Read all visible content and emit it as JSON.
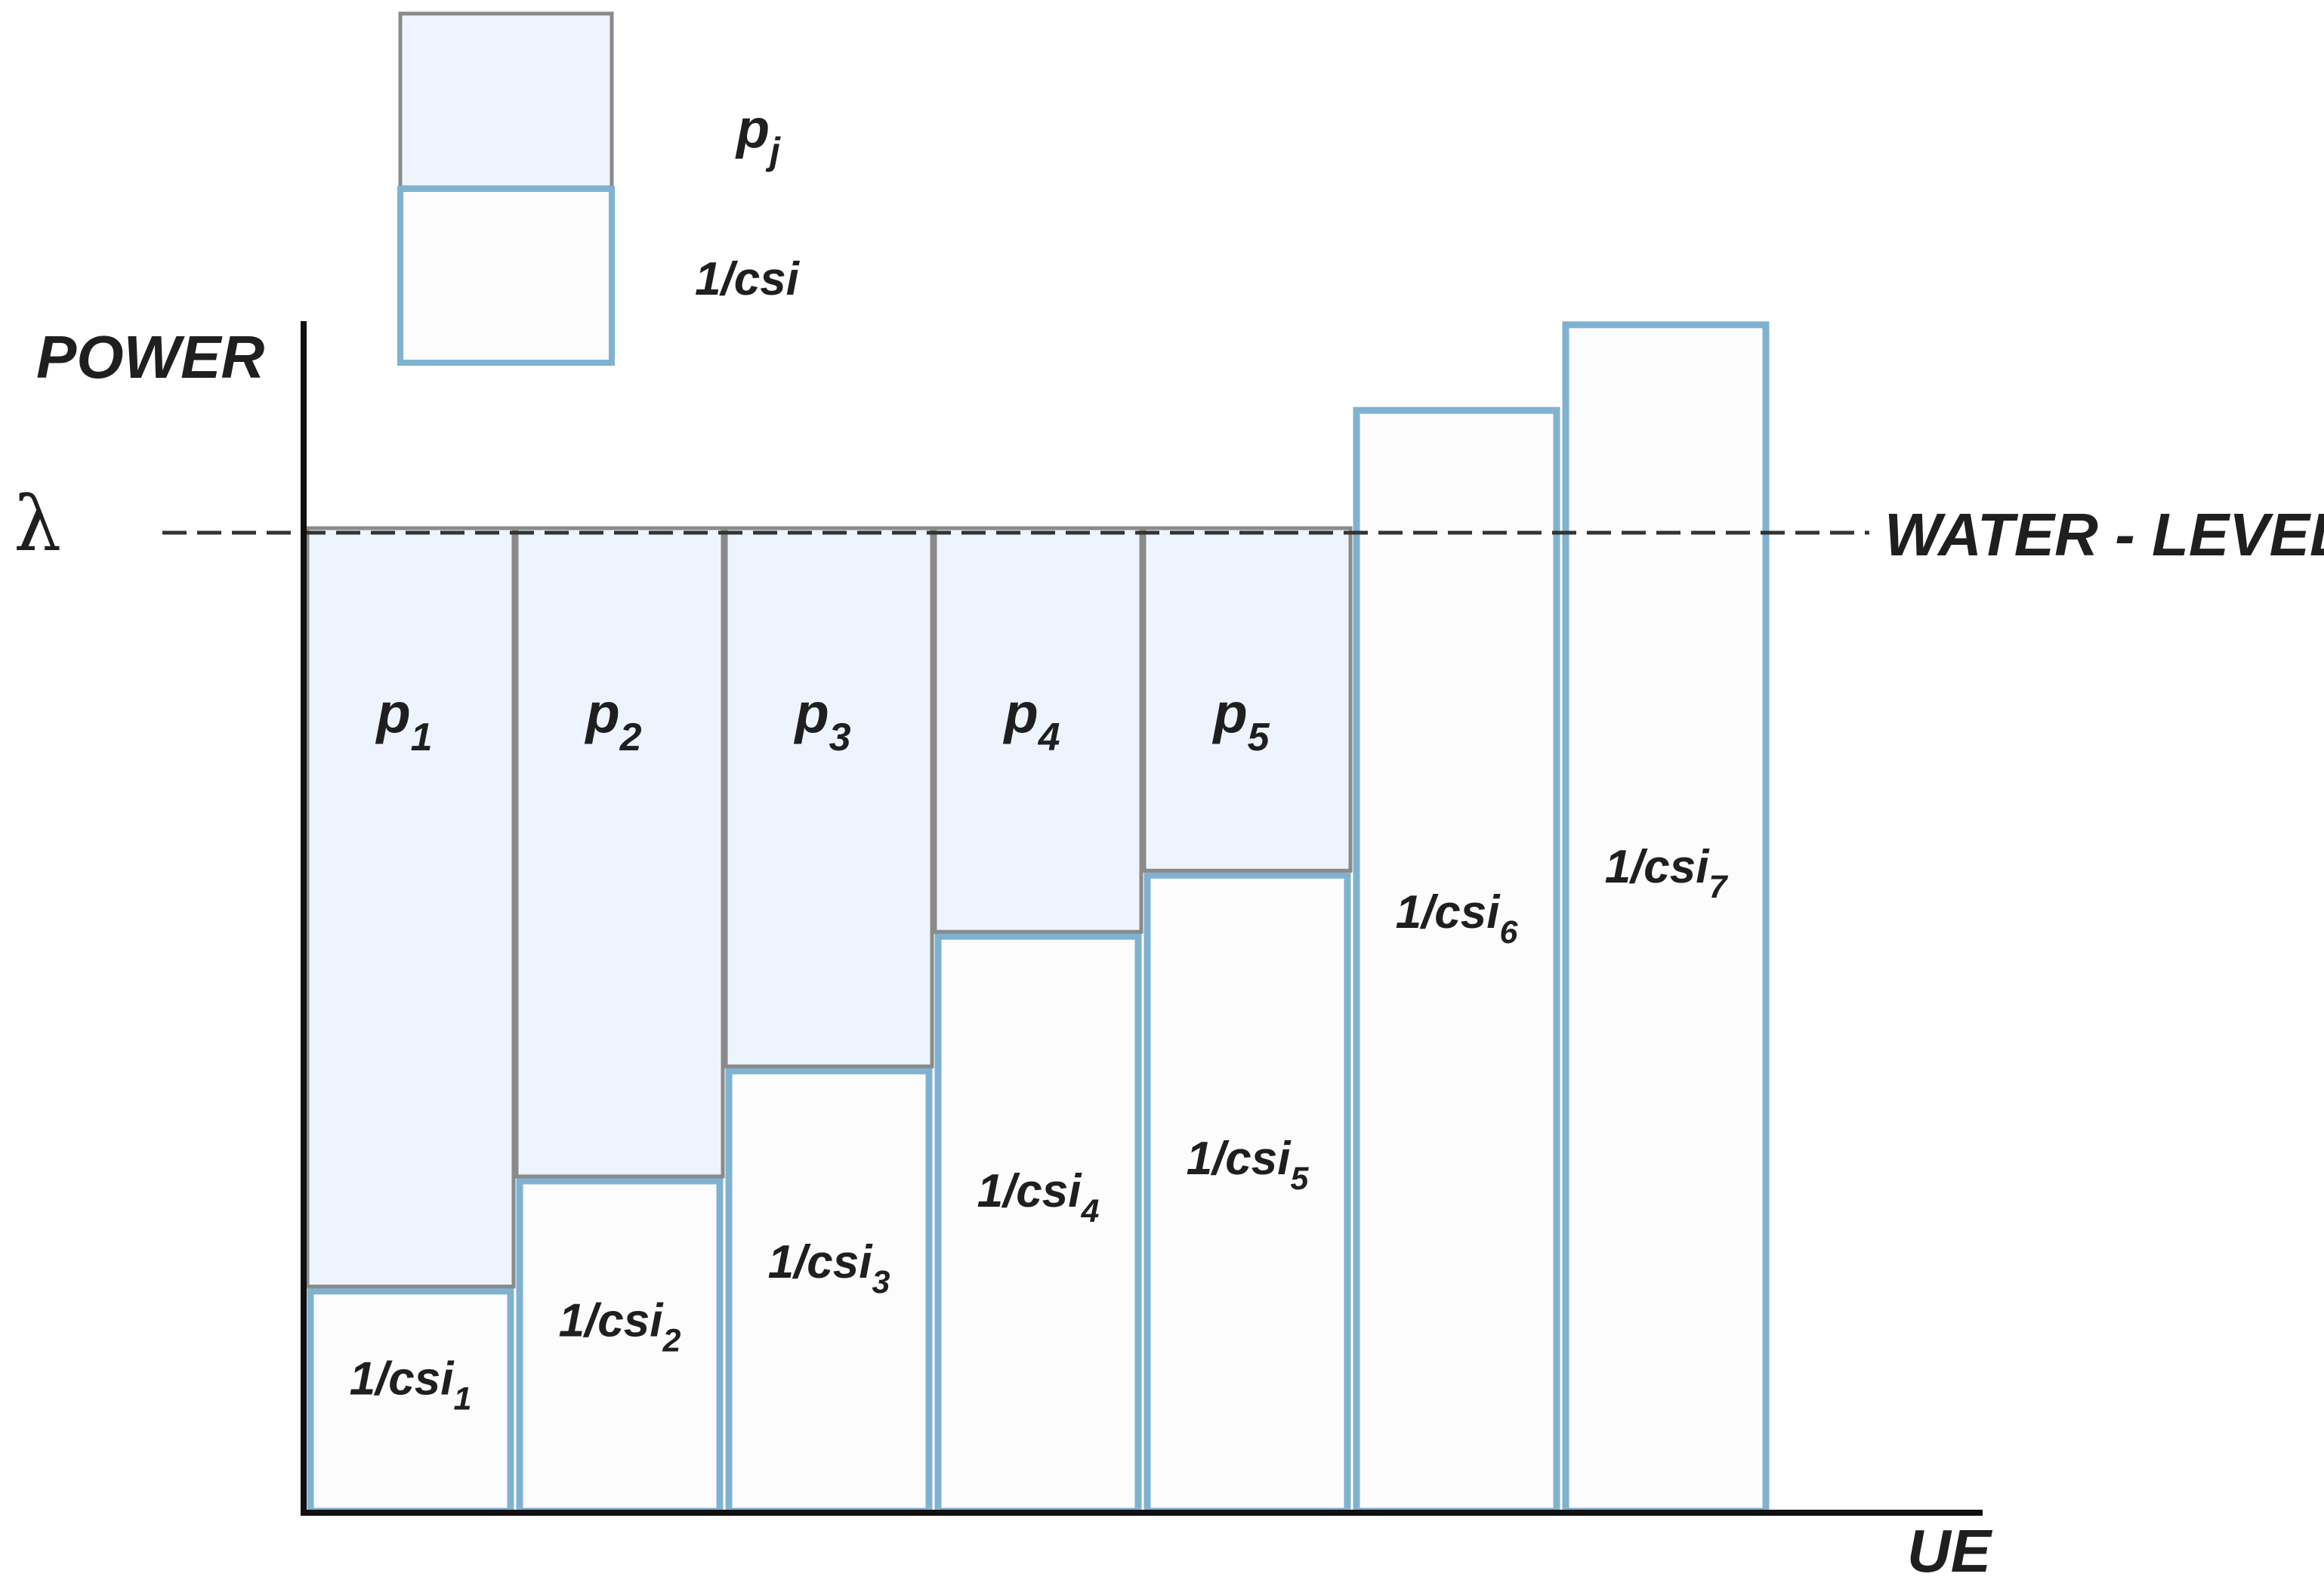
{
  "diagram": {
    "axes": {
      "y_label": "POWER",
      "x_label": "UE"
    },
    "water_level": {
      "symbol": "λ",
      "label": "WATER - LEVEL"
    },
    "legend": [
      {
        "key": "p",
        "label_main": "p",
        "label_sub": "j",
        "fill": "#eef4fd",
        "stroke": "#888888"
      },
      {
        "key": "csi",
        "label_main": "1/csi",
        "label_sub": "",
        "fill": "#fcfcfc",
        "stroke": "#7fb2d0"
      }
    ],
    "columns": [
      {
        "csi_main": "1/csi",
        "csi_sub": "1",
        "p_main": "p",
        "p_sub": "1",
        "inv_csi": 0.18,
        "power": 0.62
      },
      {
        "csi_main": "1/csi",
        "csi_sub": "2",
        "p_main": "p",
        "p_sub": "2",
        "inv_csi": 0.27,
        "power": 0.53
      },
      {
        "csi_main": "1/csi",
        "csi_sub": "3",
        "p_main": "p",
        "p_sub": "3",
        "inv_csi": 0.36,
        "power": 0.44
      },
      {
        "csi_main": "1/csi",
        "csi_sub": "4",
        "p_main": "p",
        "p_sub": "4",
        "inv_csi": 0.47,
        "power": 0.33
      },
      {
        "csi_main": "1/csi",
        "csi_sub": "5",
        "p_main": "p",
        "p_sub": "5",
        "inv_csi": 0.52,
        "power": 0.28
      },
      {
        "csi_main": "1/csi",
        "csi_sub": "6",
        "p_main": "",
        "p_sub": "",
        "inv_csi": 0.9,
        "power": 0
      },
      {
        "csi_main": "1/csi",
        "csi_sub": "7",
        "p_main": "",
        "p_sub": "",
        "inv_csi": 0.97,
        "power": 0
      }
    ],
    "water_level_value": 0.8,
    "colors": {
      "power_fill": "#eef4fd",
      "power_stroke": "#8a8a8a",
      "csi_fill": "#fcfcfc",
      "csi_stroke": "#7fb2d0",
      "axis": "#111111",
      "water_line": "#333333"
    }
  }
}
